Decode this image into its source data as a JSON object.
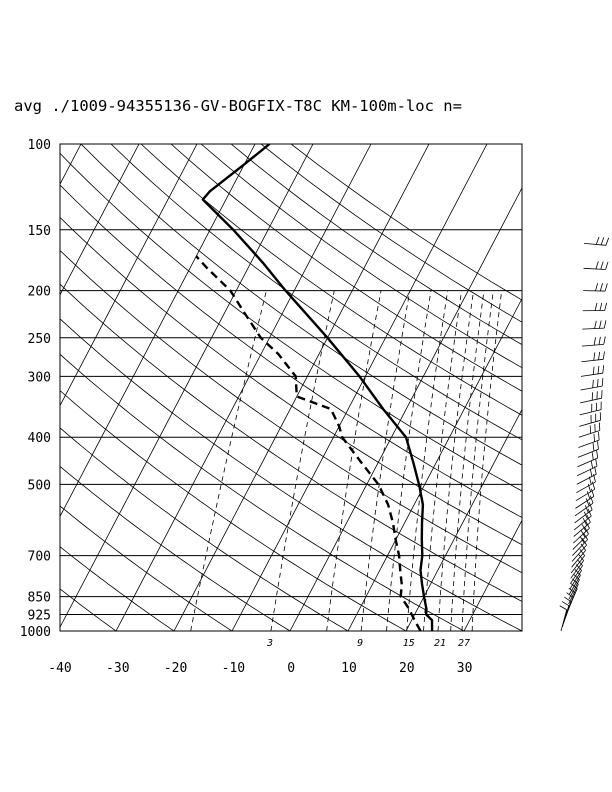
{
  "chart_data": {
    "type": "skew-t",
    "title": "avg ./1009-94355136-GV-BOGFIX-T8C KM-100m-loc n=",
    "pressure_ticks": [
      "100",
      "150",
      "200",
      "250",
      "300",
      "400",
      "500",
      "700",
      "850",
      "925",
      "1000"
    ],
    "pressure_values": [
      100,
      150,
      200,
      250,
      300,
      400,
      500,
      700,
      850,
      925,
      1000
    ],
    "temperature_ticks": [
      "-40",
      "-30",
      "-20",
      "-10",
      "0",
      "10",
      "20",
      "30"
    ],
    "temperature_values": [
      -40,
      -30,
      -20,
      -10,
      0,
      10,
      20,
      30
    ],
    "mixing_ratio_labels": [
      "3",
      "9",
      "15",
      "21",
      "27"
    ],
    "temperature_profile": [
      [
        1000,
        24.5
      ],
      [
        950,
        23.5
      ],
      [
        925,
        22.0
      ],
      [
        900,
        21.5
      ],
      [
        850,
        20.0
      ],
      [
        800,
        18.5
      ],
      [
        750,
        17.0
      ],
      [
        700,
        16.0
      ],
      [
        650,
        14.5
      ],
      [
        600,
        13.0
      ],
      [
        550,
        11.5
      ],
      [
        500,
        9.0
      ],
      [
        450,
        6.0
      ],
      [
        400,
        2.5
      ],
      [
        350,
        -4.0
      ],
      [
        300,
        -11.0
      ],
      [
        250,
        -20.0
      ],
      [
        200,
        -31.5
      ],
      [
        175,
        -38.0
      ],
      [
        150,
        -46.0
      ],
      [
        130,
        -54.0
      ],
      [
        125,
        -53.5
      ],
      [
        110,
        -50.0
      ],
      [
        100,
        -47.5
      ]
    ],
    "dewpoint_profile": [
      [
        1000,
        22.5
      ],
      [
        950,
        20.5
      ],
      [
        925,
        19.5
      ],
      [
        900,
        18.5
      ],
      [
        850,
        16.0
      ],
      [
        800,
        15.0
      ],
      [
        750,
        13.5
      ],
      [
        700,
        12.0
      ],
      [
        650,
        10.0
      ],
      [
        600,
        8.0
      ],
      [
        550,
        5.5
      ],
      [
        500,
        2.0
      ],
      [
        450,
        -3.0
      ],
      [
        400,
        -8.5
      ],
      [
        380,
        -10.0
      ],
      [
        350,
        -13.0
      ],
      [
        330,
        -20.0
      ],
      [
        300,
        -22.0
      ],
      [
        270,
        -27.0
      ],
      [
        250,
        -31.5
      ],
      [
        220,
        -37.0
      ],
      [
        200,
        -41.0
      ],
      [
        180,
        -47.0
      ],
      [
        170,
        -50.0
      ]
    ],
    "wind_barbs": "column of wind barbs right of chart, 1000 to 150 hPa",
    "xlim": [
      -40,
      40
    ],
    "ylim": [
      1000,
      100
    ]
  }
}
